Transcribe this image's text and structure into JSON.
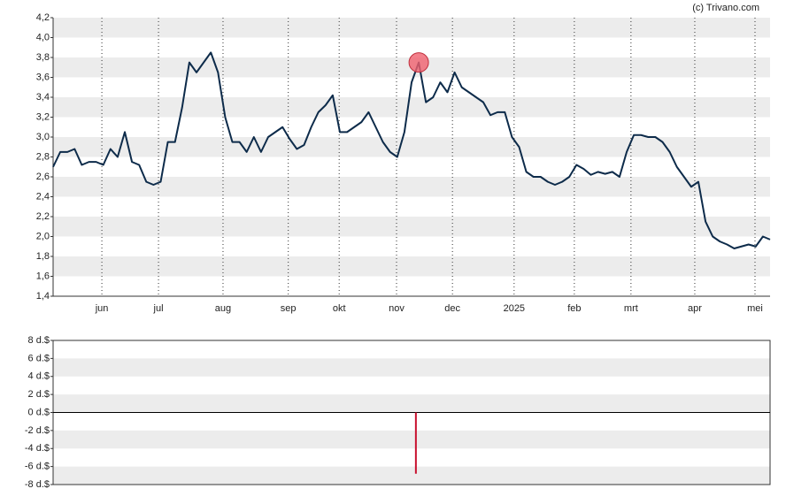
{
  "chart_data": [
    {
      "type": "line",
      "credit": "(c) Trivano.com",
      "values": [
        2.7,
        2.85,
        2.85,
        2.88,
        2.72,
        2.75,
        2.75,
        2.72,
        2.88,
        2.8,
        3.05,
        2.75,
        2.72,
        2.55,
        2.52,
        2.55,
        2.95,
        2.95,
        3.3,
        3.75,
        3.65,
        3.75,
        3.85,
        3.65,
        3.2,
        2.95,
        2.95,
        2.85,
        3.0,
        2.85,
        3.0,
        3.05,
        3.1,
        2.98,
        2.88,
        2.92,
        3.1,
        3.25,
        3.32,
        3.42,
        3.05,
        3.05,
        3.1,
        3.15,
        3.25,
        3.1,
        2.95,
        2.85,
        2.8,
        3.05,
        3.55,
        3.75,
        3.35,
        3.4,
        3.55,
        3.45,
        3.65,
        3.5,
        3.45,
        3.4,
        3.35,
        3.22,
        3.25,
        3.25,
        3.0,
        2.9,
        2.65,
        2.6,
        2.6,
        2.55,
        2.52,
        2.55,
        2.6,
        2.72,
        2.68,
        2.62,
        2.65,
        2.63,
        2.65,
        2.6,
        2.85,
        3.02,
        3.02,
        3.0,
        3.0,
        2.95,
        2.85,
        2.7,
        2.6,
        2.5,
        2.55,
        2.15,
        2.0,
        1.95,
        1.92,
        1.88,
        1.9,
        1.92,
        1.9,
        2.0,
        1.97
      ],
      "color": "#0d2b4a",
      "highlight_index": 51,
      "highlight_color": "#f0606e",
      "xlim": [
        0,
        100
      ],
      "xticks": [
        {
          "value": 6.8,
          "label": "jun"
        },
        {
          "value": 14.7,
          "label": "jul"
        },
        {
          "value": 23.7,
          "label": "aug"
        },
        {
          "value": 32.8,
          "label": "sep"
        },
        {
          "value": 39.9,
          "label": "okt"
        },
        {
          "value": 47.9,
          "label": "nov"
        },
        {
          "value": 55.7,
          "label": "dec"
        },
        {
          "value": 64.3,
          "label": "2025"
        },
        {
          "value": 72.7,
          "label": "feb"
        },
        {
          "value": 80.6,
          "label": "mrt"
        },
        {
          "value": 89.5,
          "label": "apr"
        },
        {
          "value": 97.9,
          "label": "mei"
        }
      ],
      "ylim": [
        1.4,
        4.2
      ],
      "yticks": [
        {
          "value": 1.4,
          "label": "1,4"
        },
        {
          "value": 1.6,
          "label": "1,6"
        },
        {
          "value": 1.8,
          "label": "1,8"
        },
        {
          "value": 2.0,
          "label": "2,0"
        },
        {
          "value": 2.2,
          "label": "2,2"
        },
        {
          "value": 2.4,
          "label": "2,4"
        },
        {
          "value": 2.6,
          "label": "2,6"
        },
        {
          "value": 2.8,
          "label": "2,8"
        },
        {
          "value": 3.0,
          "label": "3,0"
        },
        {
          "value": 3.2,
          "label": "3,2"
        },
        {
          "value": 3.4,
          "label": "3,4"
        },
        {
          "value": 3.6,
          "label": "3,6"
        },
        {
          "value": 3.8,
          "label": "3,8"
        },
        {
          "value": 4.0,
          "label": "4,0"
        },
        {
          "value": 4.2,
          "label": "4,2"
        }
      ],
      "grid": true
    },
    {
      "type": "bar",
      "x": [
        50.6
      ],
      "values": [
        -6.8
      ],
      "color": "#c8102e",
      "xlim": [
        0,
        100
      ],
      "ylim": [
        -8,
        8
      ],
      "yticks": [
        {
          "value": -8,
          "label": "-8 d.$"
        },
        {
          "value": -6,
          "label": "-6 d.$"
        },
        {
          "value": -4,
          "label": "-4 d.$"
        },
        {
          "value": -2,
          "label": "-2 d.$"
        },
        {
          "value": 0,
          "label": "0 d.$"
        },
        {
          "value": 2,
          "label": "2 d.$"
        },
        {
          "value": 4,
          "label": "4 d.$"
        },
        {
          "value": 6,
          "label": "6 d.$"
        },
        {
          "value": 8,
          "label": "8 d.$"
        }
      ],
      "grid": true
    }
  ]
}
